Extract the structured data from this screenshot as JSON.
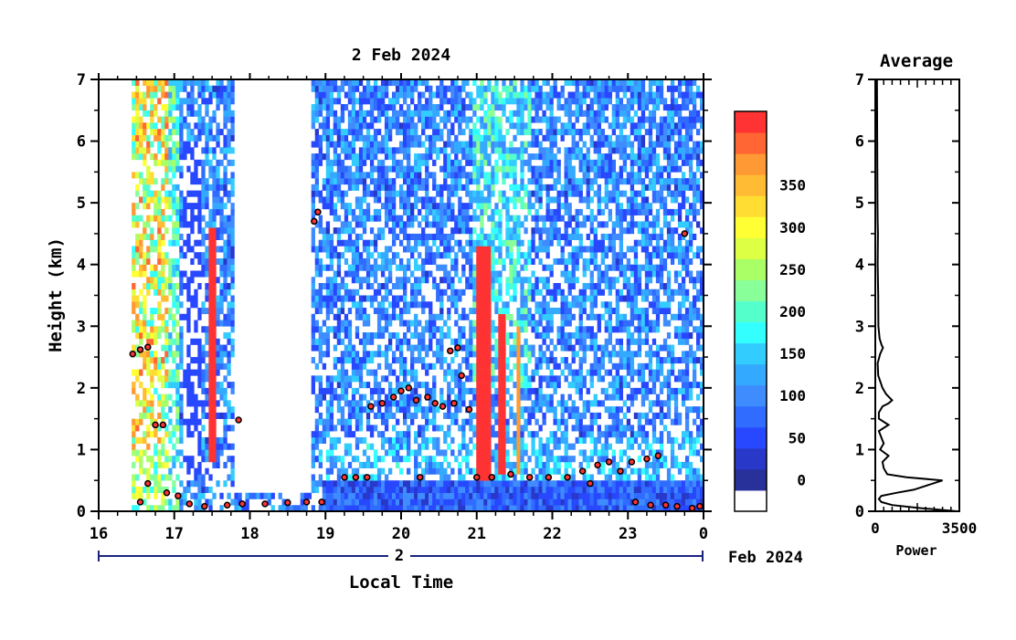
{
  "chart_data": [
    {
      "type": "heatmap",
      "title": "2 Feb 2024",
      "xlabel": "Local Time",
      "ylabel": "Height (km)",
      "x_ticks": [
        "16",
        "17",
        "18",
        "19",
        "20",
        "21",
        "22",
        "23",
        "0"
      ],
      "y_ticks": [
        "0",
        "1",
        "2",
        "3",
        "4",
        "5",
        "6",
        "7"
      ],
      "xlim": [
        16,
        24
      ],
      "ylim": [
        0,
        7
      ],
      "date_axis": {
        "day": "2",
        "month_year": "Feb 2024"
      },
      "colorbar": {
        "ticks": [
          "0",
          "50",
          "100",
          "150",
          "200",
          "250",
          "300",
          "350"
        ],
        "range": [
          0,
          380
        ],
        "colors": [
          "#ffffff",
          "#28309a",
          "#2838c8",
          "#2848ff",
          "#2f6cff",
          "#3f8cff",
          "#33aaff",
          "#33ccff",
          "#33ffff",
          "#55ffcc",
          "#88ff99",
          "#aaff66",
          "#ddff44",
          "#ffff33",
          "#ffdd33",
          "#ffbb33",
          "#ff9933",
          "#ff6633",
          "#ff3333"
        ]
      },
      "cloud_base_points": [
        [
          16.45,
          2.55
        ],
        [
          16.55,
          2.62
        ],
        [
          16.65,
          2.66
        ],
        [
          16.75,
          1.4
        ],
        [
          16.85,
          1.4
        ],
        [
          16.55,
          0.15
        ],
        [
          16.65,
          0.45
        ],
        [
          16.9,
          0.3
        ],
        [
          17.05,
          0.25
        ],
        [
          17.2,
          0.12
        ],
        [
          17.4,
          0.08
        ],
        [
          17.7,
          0.1
        ],
        [
          17.85,
          1.48
        ],
        [
          17.9,
          0.12
        ],
        [
          18.2,
          0.12
        ],
        [
          18.5,
          0.14
        ],
        [
          18.75,
          0.15
        ],
        [
          18.85,
          4.7
        ],
        [
          18.9,
          4.85
        ],
        [
          18.95,
          0.15
        ],
        [
          19.25,
          0.55
        ],
        [
          19.4,
          0.55
        ],
        [
          19.55,
          0.55
        ],
        [
          19.6,
          1.7
        ],
        [
          19.75,
          1.75
        ],
        [
          19.9,
          1.85
        ],
        [
          20.0,
          1.95
        ],
        [
          20.1,
          2.0
        ],
        [
          20.2,
          1.8
        ],
        [
          20.25,
          0.55
        ],
        [
          20.35,
          1.85
        ],
        [
          20.45,
          1.75
        ],
        [
          20.55,
          1.7
        ],
        [
          20.65,
          2.6
        ],
        [
          20.7,
          1.75
        ],
        [
          20.75,
          2.65
        ],
        [
          20.8,
          2.2
        ],
        [
          20.9,
          1.65
        ],
        [
          21.0,
          0.55
        ],
        [
          21.2,
          0.55
        ],
        [
          21.45,
          0.6
        ],
        [
          21.7,
          0.55
        ],
        [
          21.95,
          0.55
        ],
        [
          22.2,
          0.55
        ],
        [
          22.4,
          0.65
        ],
        [
          22.5,
          0.45
        ],
        [
          22.6,
          0.75
        ],
        [
          22.75,
          0.8
        ],
        [
          22.9,
          0.65
        ],
        [
          23.05,
          0.8
        ],
        [
          23.25,
          0.85
        ],
        [
          23.4,
          0.9
        ],
        [
          23.1,
          0.15
        ],
        [
          23.3,
          0.1
        ],
        [
          23.5,
          0.1
        ],
        [
          23.65,
          0.08
        ],
        [
          23.85,
          0.05
        ],
        [
          23.95,
          0.08
        ],
        [
          23.75,
          4.5
        ]
      ]
    },
    {
      "type": "line",
      "title": "Average",
      "xlabel": "Power",
      "x_ticks": [
        "0",
        "3500"
      ],
      "y_ticks": [
        "0",
        "1",
        "2",
        "3",
        "4",
        "5",
        "6",
        "7"
      ],
      "xlim": [
        0,
        3500
      ],
      "ylim": [
        0,
        7
      ],
      "series": [
        {
          "x": [
            3400,
            1900,
            700,
            250,
            150,
            250,
            900,
            1600,
            2800,
            1300,
            500,
            350,
            300,
            550,
            200,
            350,
            150,
            550,
            150,
            150,
            300,
            550,
            700,
            450,
            300,
            120,
            100,
            200,
            320,
            260,
            180,
            130,
            120,
            100,
            110,
            100,
            90,
            80,
            70
          ],
          "y": [
            0.0,
            0.05,
            0.1,
            0.15,
            0.2,
            0.25,
            0.3,
            0.35,
            0.5,
            0.55,
            0.6,
            0.7,
            0.8,
            0.9,
            1.0,
            1.1,
            1.3,
            1.4,
            1.5,
            1.6,
            1.7,
            1.75,
            1.8,
            1.9,
            2.0,
            2.2,
            2.4,
            2.55,
            2.65,
            2.7,
            2.8,
            3.0,
            3.5,
            4.0,
            4.5,
            4.7,
            5.0,
            6.0,
            7.0
          ]
        }
      ]
    }
  ]
}
